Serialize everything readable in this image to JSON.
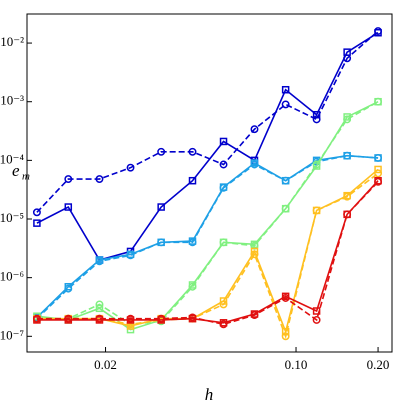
{
  "chart_data": {
    "type": "line",
    "xlabel": "h",
    "ylabel": "e",
    "ylabel_sub": "m",
    "log_x": true,
    "log_y": true,
    "x": [
      0.0112,
      0.0146,
      0.019,
      0.0247,
      0.032,
      0.0417,
      0.0542,
      0.0704,
      0.0916,
      0.119,
      0.154,
      0.2
    ],
    "xlim": [
      0.0103,
      0.225
    ],
    "xticks": [
      0.02,
      {
        "value": 0.1,
        "label": "0.10"
      },
      {
        "value": 0.2,
        "label": "0.20"
      }
    ],
    "ylim": [
      5.4e-08,
      0.0313
    ],
    "yticks": [
      {
        "value": 1e-07,
        "label": "10⁻⁷"
      },
      {
        "value": 1e-06,
        "label": "10⁻⁶"
      },
      {
        "value": 1e-05,
        "label": "10⁻⁵"
      },
      {
        "value": 0.0001,
        "label": "10⁻⁴"
      },
      {
        "value": 0.001,
        "label": "10⁻³"
      },
      {
        "value": 0.01,
        "label": "10⁻²"
      }
    ],
    "series": [
      {
        "color": "#0000cc",
        "linestyle": "solid",
        "marker": "square",
        "values": [
          8.5e-06,
          1.6e-05,
          2e-06,
          2.8e-06,
          1.6e-05,
          4.5e-05,
          0.00021,
          0.0001,
          0.0016,
          0.0006,
          0.007,
          0.015
        ]
      },
      {
        "color": "#0000cc",
        "linestyle": "dashed",
        "marker": "circle",
        "values": [
          1.3e-05,
          4.8e-05,
          4.8e-05,
          7.5e-05,
          0.00014,
          0.00014,
          8.5e-05,
          0.00034,
          0.0009,
          0.0005,
          0.0055,
          0.016
        ]
      },
      {
        "color": "#1ea0e6",
        "linestyle": "solid",
        "marker": "square",
        "values": [
          2.1e-07,
          7e-07,
          2e-06,
          2.5e-06,
          4e-06,
          4.2e-06,
          3.5e-05,
          9e-05,
          4.5e-05,
          0.0001,
          0.00012,
          0.00011
        ]
      },
      {
        "color": "#1ea0e6",
        "linestyle": "dashed",
        "marker": "circle",
        "values": [
          2e-07,
          6.5e-07,
          1.9e-06,
          2.4e-06,
          4e-06,
          4e-06,
          3.4e-05,
          8.5e-05,
          4.5e-05,
          9.5e-05,
          0.00012,
          0.00011
        ]
      },
      {
        "color": "#80f080",
        "linestyle": "solid",
        "marker": "square",
        "values": [
          2.2e-07,
          1.9e-07,
          3e-07,
          1.3e-07,
          1.9e-07,
          7.5e-07,
          4e-06,
          3.7e-06,
          1.5e-05,
          8e-05,
          0.00055,
          0.001
        ]
      },
      {
        "color": "#80f080",
        "linestyle": "dashed",
        "marker": "circle",
        "values": [
          2e-07,
          2e-07,
          3.5e-07,
          1.6e-07,
          1.8e-07,
          7e-07,
          4e-06,
          3.5e-06,
          1.5e-05,
          8.5e-05,
          0.0005,
          0.001
        ]
      },
      {
        "color": "#ffc020",
        "linestyle": "solid",
        "marker": "square",
        "values": [
          2e-07,
          2e-07,
          2e-07,
          1.5e-07,
          2e-07,
          2e-07,
          4e-07,
          2.8e-06,
          1.2e-07,
          1.4e-05,
          2.5e-05,
          7e-05
        ]
      },
      {
        "color": "#ffc020",
        "linestyle": "dashed",
        "marker": "circle",
        "values": [
          2e-07,
          2e-07,
          2e-07,
          1.6e-07,
          1.9e-07,
          2e-07,
          3.5e-07,
          2.5e-06,
          1e-07,
          1.4e-05,
          2.4e-05,
          6e-05
        ]
      },
      {
        "color": "#e01010",
        "linestyle": "solid",
        "marker": "square",
        "values": [
          1.9e-07,
          1.9e-07,
          1.9e-07,
          1.9e-07,
          1.9e-07,
          2e-07,
          1.7e-07,
          2.4e-07,
          4.8e-07,
          2.7e-07,
          1.2e-05,
          4.5e-05
        ]
      },
      {
        "color": "#e01010",
        "linestyle": "dashed",
        "marker": "circle",
        "values": [
          2e-07,
          2e-07,
          2e-07,
          2e-07,
          2e-07,
          2.1e-07,
          1.6e-07,
          2.3e-07,
          4.5e-07,
          1.9e-07,
          1.2e-05,
          4.3e-05
        ]
      }
    ]
  }
}
